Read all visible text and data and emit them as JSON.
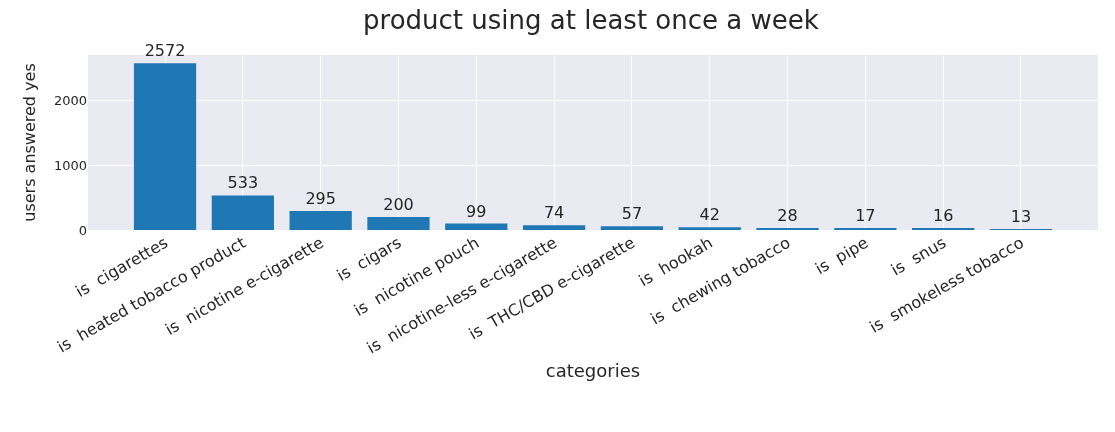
{
  "chart_data": {
    "type": "bar",
    "title": "product using at least once a week",
    "xlabel": "categories",
    "ylabel": "users answered yes",
    "categories": [
      "is  cigarettes",
      "is  heated tobacco product",
      "is  nicotine e-cigarette",
      "is  cigars",
      "is  nicotine pouch",
      "is  nicotine-less e-cigarette",
      "is  THC/CBD e-cigarette",
      "is  hookah",
      "is  chewing tobacco",
      "is  pipe",
      "is  snus",
      "is  smokeless tobacco"
    ],
    "values": [
      2572,
      533,
      295,
      200,
      99,
      74,
      57,
      42,
      28,
      17,
      16,
      13
    ],
    "color": "#1f77b4",
    "ylim": [
      0,
      2700
    ],
    "yticks": [
      0,
      1000,
      2000
    ],
    "grid": true,
    "data_labels": true
  }
}
